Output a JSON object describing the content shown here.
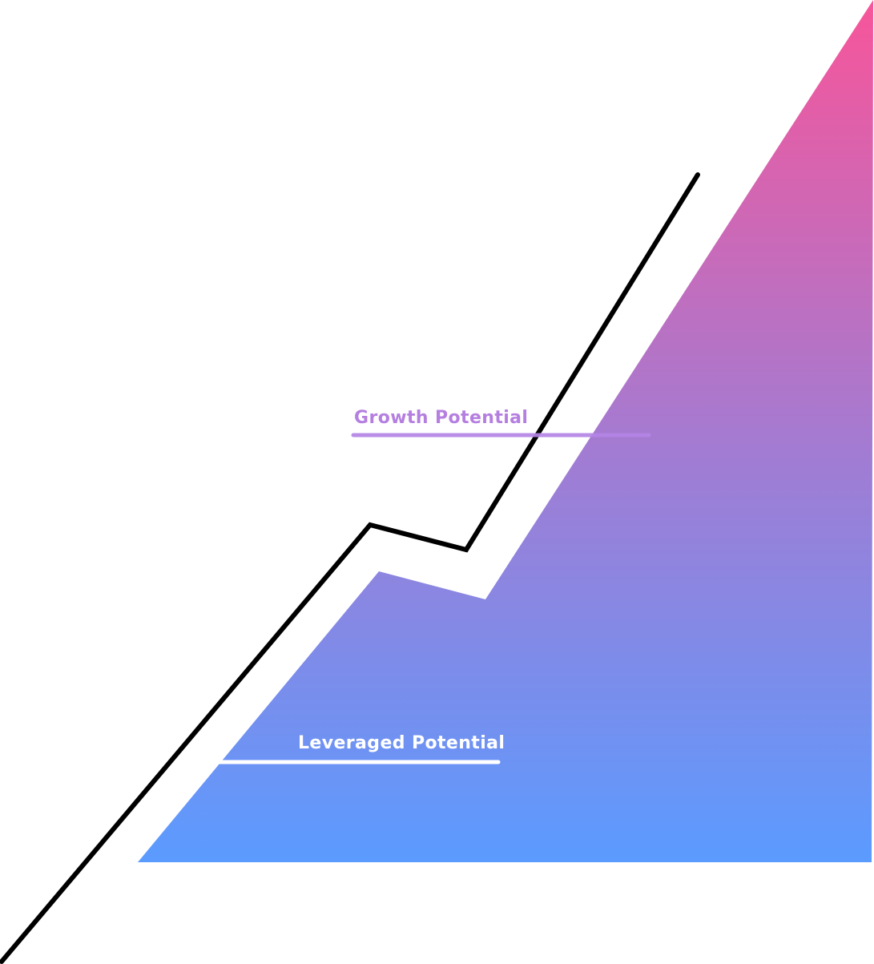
{
  "labels": {
    "growth": "Growth Potential",
    "leveraged": "Leveraged Potential"
  },
  "colors": {
    "gradient_top": "#F7559A",
    "gradient_mid": "#A67AD0",
    "gradient_bottom": "#5B9BFF",
    "growth_label": "#B57FE0",
    "growth_line": "#B585E6",
    "leveraged_label": "#FFFFFF",
    "leveraged_line": "#FFFFFF",
    "trend_line": "#000000"
  },
  "icons": {
    "area": "gradient-area-shape",
    "trend": "trend-line"
  }
}
